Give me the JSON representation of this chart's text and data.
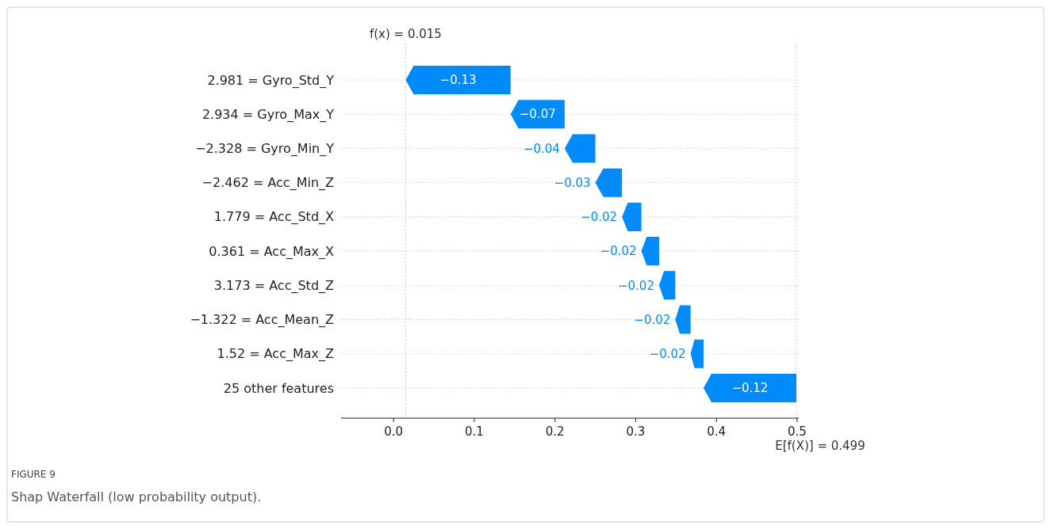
{
  "chart_data": {
    "type": "bar",
    "orientation": "horizontal",
    "categories": [
      "2.981 = Gyro_Std_Y",
      "2.934 = Gyro_Max_Y",
      "−2.328 = Gyro_Min_Y",
      "−2.462 = Acc_Min_Z",
      "1.779 = Acc_Std_X",
      "0.361 = Acc_Max_X",
      "3.173 = Acc_Std_Z",
      "−1.322 = Acc_Mean_Z",
      "1.52 = Acc_Max_Z",
      "25 other features"
    ],
    "base": [
      0.145,
      0.212,
      0.25,
      0.283,
      0.307,
      0.329,
      0.349,
      0.368,
      0.384,
      0.499
    ],
    "values": [
      -0.13,
      -0.067,
      -0.038,
      -0.033,
      -0.024,
      -0.022,
      -0.02,
      -0.019,
      -0.016,
      -0.115
    ],
    "value_labels": [
      "−0.13",
      "−0.07",
      "−0.04",
      "−0.03",
      "−0.02",
      "−0.02",
      "−0.02",
      "−0.02",
      "−0.02",
      "−0.12"
    ],
    "color": "#008bfb",
    "xlim": [
      -0.065,
      0.502
    ],
    "xticks": [
      {
        "value": 0,
        "label": "0.0"
      },
      0.1,
      0.2,
      0.3,
      0.4,
      0.5
    ],
    "grid": "y",
    "ref_lines": [
      {
        "axis": "x",
        "value": 0.015,
        "label": "f(x) = 0.015",
        "color": "#bbbbbb",
        "line_style": "dotted"
      },
      {
        "axis": "x",
        "value": 0.499,
        "label": "E[f(X)] = 0.499",
        "color": "#bbbbbb",
        "line_style": "dotted"
      }
    ],
    "annotations": [
      "FIGURE 9",
      "Shap Waterfall (low probability output)."
    ]
  }
}
